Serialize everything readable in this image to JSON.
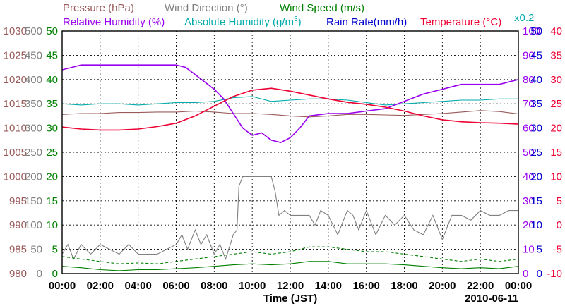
{
  "chart_data": {
    "type": "line",
    "date": "2010-06-11",
    "xlabel": "Time (JST)",
    "x_ticks": [
      "00:00",
      "02:00",
      "04:00",
      "06:00",
      "08:00",
      "10:00",
      "12:00",
      "14:00",
      "16:00",
      "18:00",
      "20:00",
      "22:00",
      "00:00"
    ],
    "x_range_hours": [
      0,
      24
    ],
    "grid": true,
    "legend": [
      {
        "name": "Pressure (hPa)",
        "color": "#9a5a5a"
      },
      {
        "name": "Wind Direction (°)",
        "color": "#808080"
      },
      {
        "name": "Wind Speed (m/s)",
        "color": "#008000"
      },
      {
        "name": "Relative Humidity (%)",
        "color": "#9900ee"
      },
      {
        "name": "Absolute Humidity (g/m³)",
        "color": "#00aaaa"
      },
      {
        "name": "Rain Rate(mm/h)",
        "color": "#0000cc"
      },
      {
        "name": "Temperature (°C)",
        "color": "#ee0033"
      }
    ],
    "rain_scale_note": "x0.2",
    "axes": {
      "pressure": {
        "min": 980,
        "max": 1030,
        "ticks": [
          "1030",
          "1025",
          "1020",
          "1015",
          "1010",
          "1005",
          "1000",
          "995",
          "990",
          "985",
          "980"
        ],
        "color": "#9a5a5a"
      },
      "wind_direction": {
        "min": 0,
        "max": 500,
        "ticks": [
          "500",
          "450",
          "400",
          "350",
          "300",
          "250",
          "200",
          "150",
          "100",
          "50",
          "0"
        ],
        "color": "#808080"
      },
      "wind_speed": {
        "min": 0,
        "max": 50,
        "ticks": [
          "50",
          "45",
          "40",
          "35",
          "30",
          "25",
          "20",
          "15",
          "10",
          "5",
          "0"
        ],
        "color": "#008000"
      },
      "relative_humidity": {
        "min": 0,
        "max": 100,
        "ticks": [
          "100",
          "90",
          "80",
          "70",
          "60",
          "50",
          "40",
          "30",
          "20",
          "10",
          "0"
        ],
        "color": "#9900ee"
      },
      "rain_rate": {
        "min": 0,
        "max": 50,
        "ticks": [
          "50",
          "45",
          "40",
          "35",
          "30",
          "25",
          "20",
          "15",
          "10",
          "5",
          "0"
        ],
        "color": "#0000cc"
      },
      "temperature": {
        "min": -10,
        "max": 40,
        "ticks": [
          "40",
          "35",
          "30",
          "25",
          "20",
          "15",
          "10",
          "5",
          "0",
          "-5",
          "-10"
        ],
        "color": "#ee0033"
      }
    },
    "series": [
      {
        "key": "temperature",
        "color": "#ee0033",
        "x": [
          0,
          1,
          2,
          3,
          4,
          5,
          6,
          7,
          8,
          9,
          10,
          11,
          12,
          13,
          14,
          15,
          16,
          17,
          18,
          19,
          20,
          21,
          22,
          23,
          24
        ],
        "values": [
          20.2,
          19.8,
          19.6,
          19.6,
          19.8,
          20.3,
          21.0,
          22.5,
          24.5,
          26.5,
          27.8,
          28.2,
          27.6,
          26.8,
          26.0,
          25.3,
          24.9,
          24.3,
          23.5,
          22.5,
          21.7,
          21.3,
          21.1,
          21.0,
          20.8
        ]
      },
      {
        "key": "relative_humidity",
        "color": "#9900ee",
        "x": [
          0,
          0.5,
          1,
          2,
          3,
          4,
          5,
          6,
          6.5,
          7,
          8,
          8.5,
          9,
          9.5,
          10,
          10.5,
          11,
          11.5,
          12,
          12.5,
          13,
          14,
          15,
          16,
          17,
          18,
          19,
          20,
          21,
          22,
          23,
          24
        ],
        "values": [
          84,
          85,
          86,
          86,
          86,
          86,
          86,
          86,
          85,
          82,
          76,
          72,
          66,
          60,
          57,
          58,
          55,
          54,
          56,
          60,
          65,
          66,
          66,
          67,
          68,
          71,
          74,
          76,
          78,
          78,
          78,
          80
        ]
      },
      {
        "key": "absolute_humidity",
        "color": "#00aaaa",
        "x": [
          0,
          1,
          2,
          3,
          4,
          5,
          6,
          7,
          8,
          9,
          10,
          11,
          12,
          13,
          14,
          15,
          16,
          17,
          18,
          19,
          20,
          21,
          22,
          23,
          24
        ],
        "values": [
          70,
          69.5,
          70,
          70,
          69.5,
          70,
          70.5,
          70.5,
          71,
          72.5,
          73,
          71,
          71.5,
          72,
          72,
          71.5,
          70.5,
          69.5,
          70,
          70.5,
          71,
          71.5,
          71.5,
          72,
          72
        ]
      },
      {
        "key": "pressure",
        "color": "#9a5a5a",
        "x": [
          0,
          1,
          2,
          3,
          4,
          5,
          6,
          7,
          8,
          9,
          10,
          11,
          12,
          13,
          14,
          15,
          16,
          17,
          18,
          19,
          20,
          21,
          22,
          23,
          24
        ],
        "values": [
          1012.8,
          1013.0,
          1013.0,
          1013.2,
          1013.2,
          1013.3,
          1013.3,
          1013.5,
          1013.3,
          1013.0,
          1013.0,
          1012.8,
          1012.5,
          1012.3,
          1012.5,
          1012.8,
          1012.8,
          1012.7,
          1012.6,
          1012.8,
          1013.0,
          1013.3,
          1013.6,
          1013.4,
          1012.9
        ]
      },
      {
        "key": "wind_direction",
        "color": "#808080",
        "x": [
          0,
          0.3,
          0.6,
          1,
          1.5,
          2,
          2.5,
          3,
          3.5,
          4,
          5,
          6,
          6.3,
          6.6,
          7,
          7.3,
          7.6,
          8,
          8.3,
          8.6,
          9,
          9.2,
          9.3,
          9.5,
          10,
          10.5,
          11,
          11.2,
          11.4,
          11.7,
          12,
          12.5,
          13,
          13.3,
          13.6,
          14,
          14.5,
          15,
          15.3,
          15.6,
          16,
          16.5,
          17,
          17.5,
          18,
          18.5,
          19,
          19.5,
          20,
          20.5,
          21,
          21.5,
          22,
          22.5,
          23,
          23.5,
          24
        ],
        "values": [
          40,
          60,
          30,
          60,
          40,
          60,
          50,
          40,
          60,
          40,
          40,
          60,
          80,
          50,
          90,
          60,
          80,
          40,
          60,
          30,
          80,
          90,
          180,
          200,
          200,
          200,
          200,
          170,
          120,
          130,
          120,
          120,
          120,
          100,
          130,
          120,
          80,
          130,
          120,
          90,
          130,
          80,
          120,
          100,
          120,
          90,
          80,
          120,
          70,
          120,
          120,
          110,
          130,
          120,
          120,
          130,
          130
        ]
      },
      {
        "key": "wind_speed",
        "color": "#008000",
        "style": "solid",
        "x": [
          0,
          1,
          2,
          3,
          4,
          5,
          6,
          7,
          8,
          9,
          10,
          11,
          12,
          13,
          14,
          15,
          16,
          17,
          18,
          19,
          20,
          21,
          22,
          23,
          24
        ],
        "values": [
          1.5,
          1.2,
          0.8,
          0.6,
          0.8,
          0.8,
          1.0,
          1.2,
          1.5,
          1.8,
          2.0,
          1.8,
          2.0,
          2.5,
          2.5,
          2.0,
          2.0,
          2.0,
          1.8,
          1.5,
          1.2,
          1.0,
          1.2,
          1.0,
          1.5
        ]
      },
      {
        "key": "wind_speed",
        "color": "#008000",
        "style": "dashed",
        "x": [
          0,
          1,
          2,
          3,
          4,
          5,
          6,
          7,
          8,
          9,
          10,
          11,
          12,
          13,
          14,
          15,
          16,
          17,
          18,
          19,
          20,
          21,
          22,
          23,
          24
        ],
        "values": [
          3.5,
          3.0,
          2.5,
          2.0,
          2.2,
          2.0,
          2.5,
          3.0,
          3.5,
          4.0,
          4.5,
          4.0,
          4.5,
          5.5,
          5.5,
          5.0,
          4.5,
          4.5,
          4.0,
          3.5,
          3.0,
          2.5,
          3.0,
          2.5,
          3.0
        ]
      }
    ]
  }
}
